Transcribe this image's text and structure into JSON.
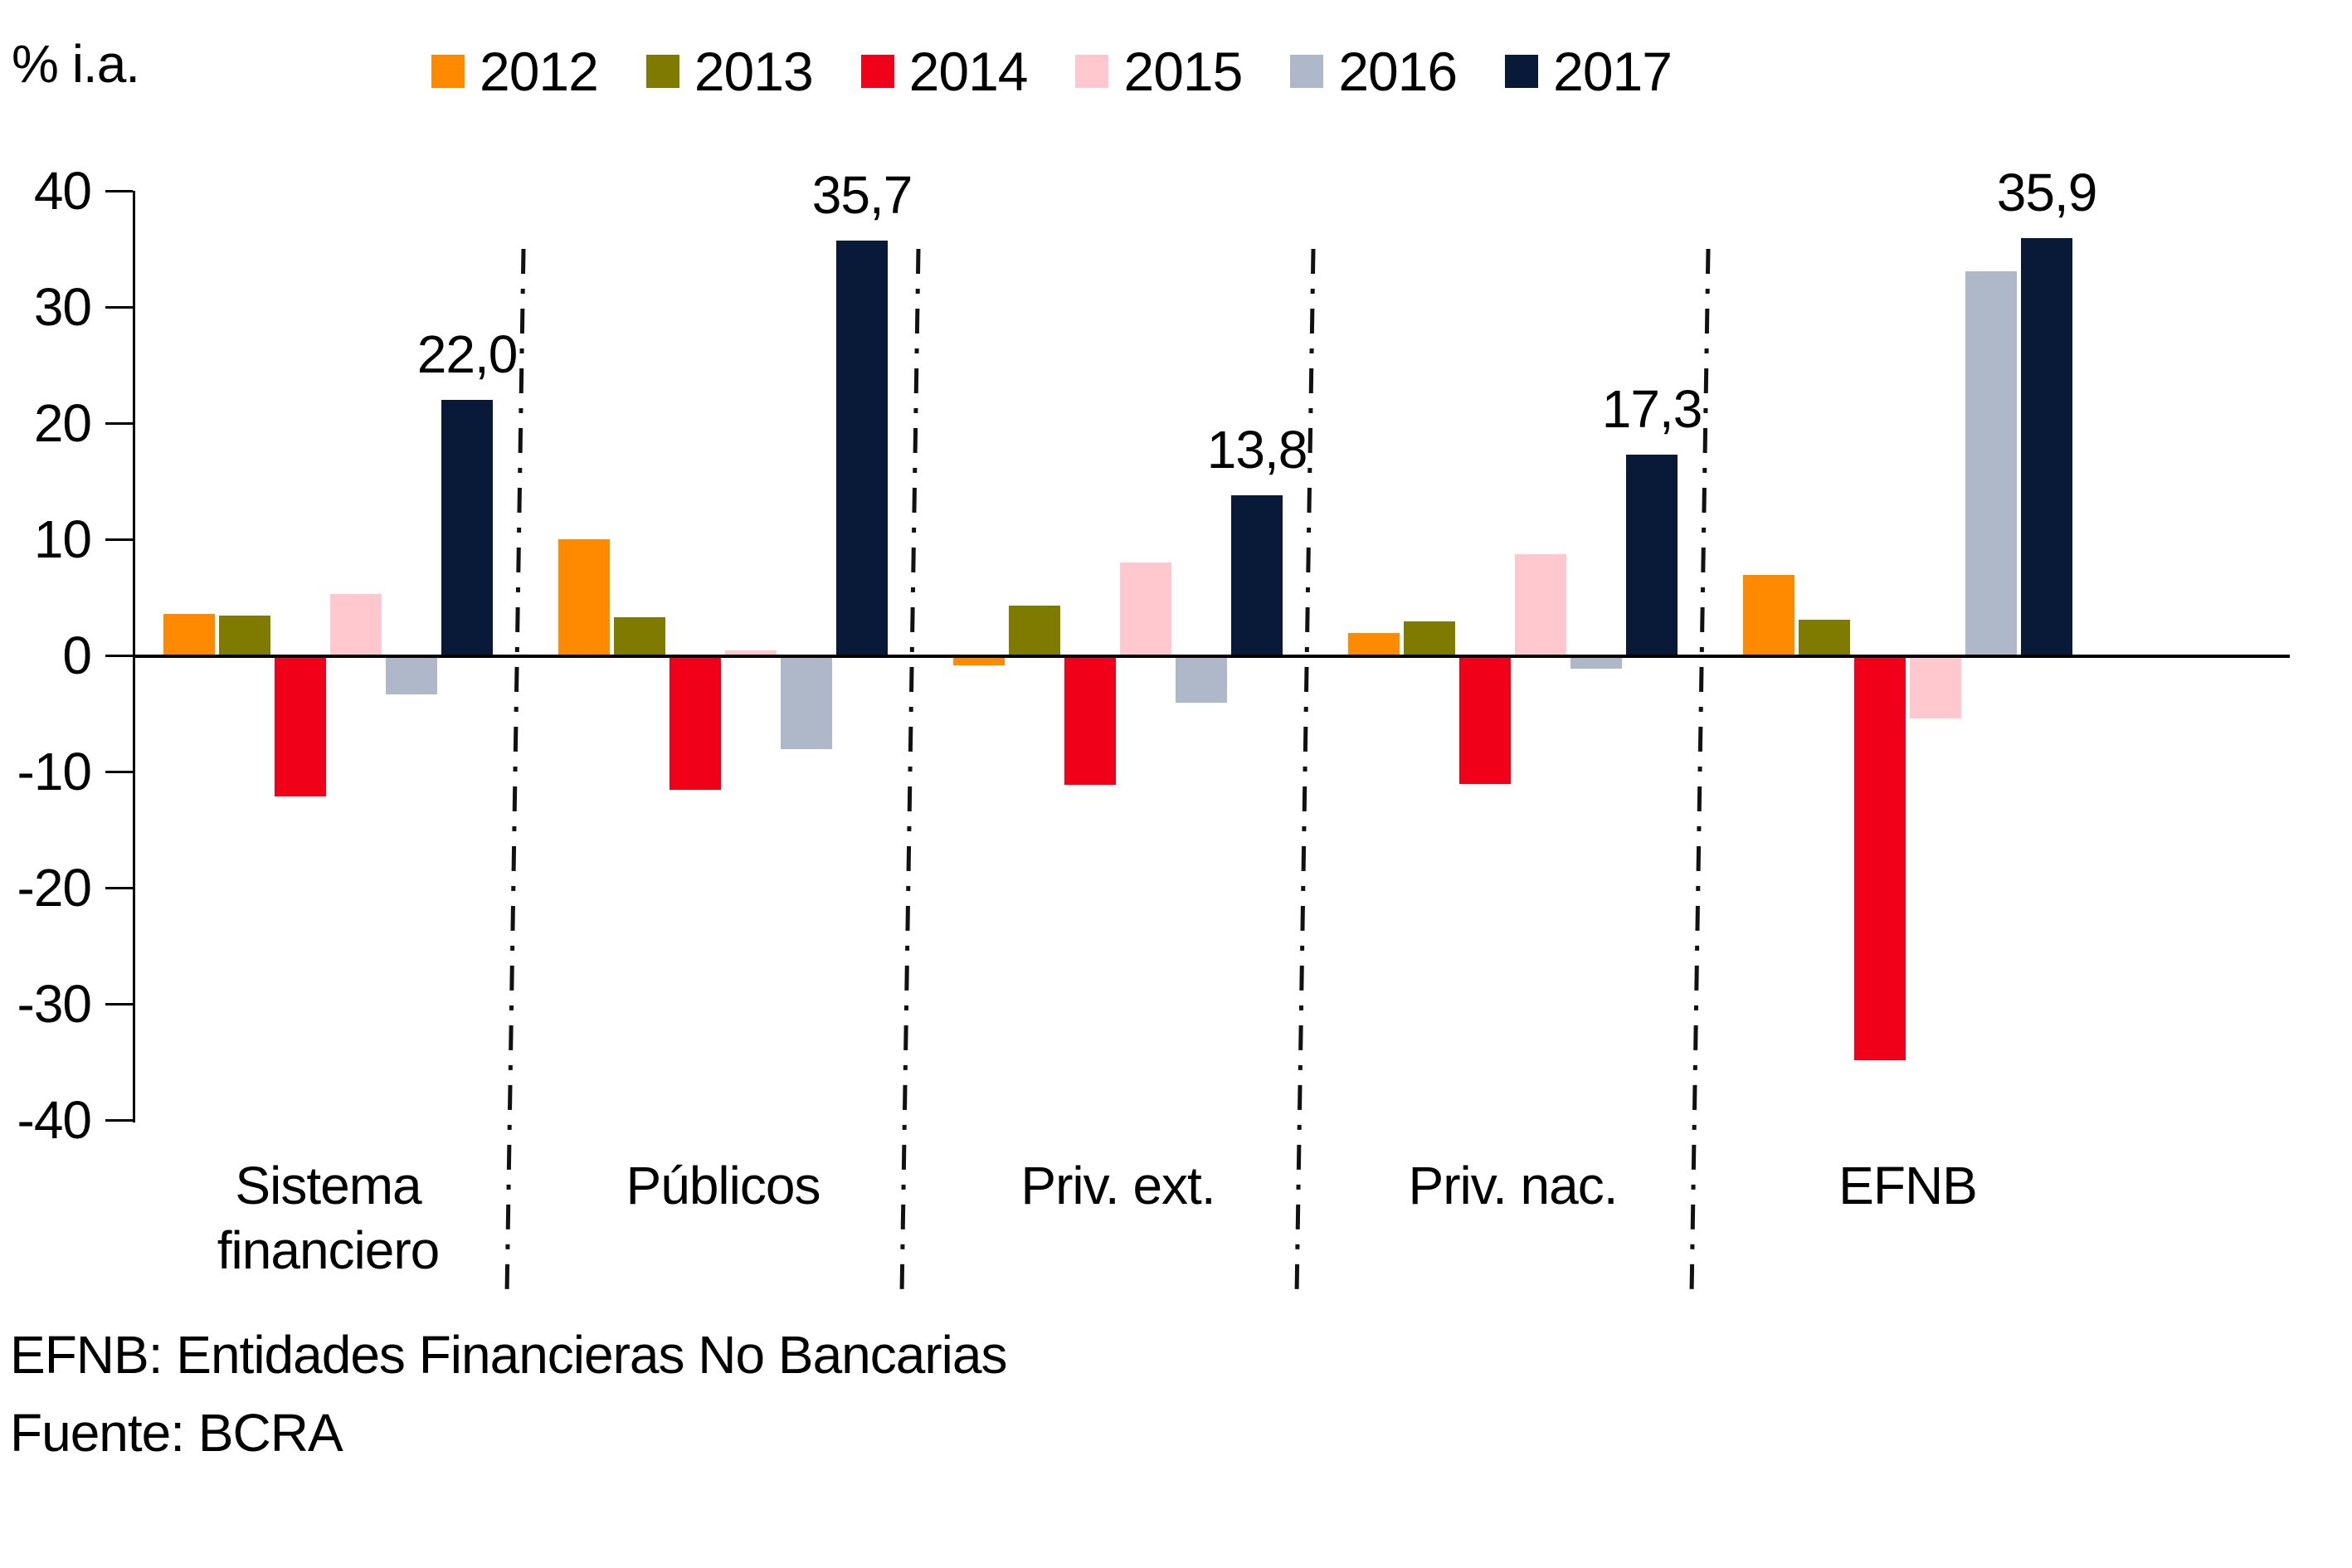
{
  "y_axis_label": "% i.a.",
  "footnotes": [
    "EFNB: Entidades Financieras No Bancarias",
    "Fuente: BCRA"
  ],
  "colors": {
    "axis": "#000000",
    "separator": "#111111",
    "s2012": "#FF8A00",
    "s2013": "#7E7B00",
    "s2014": "#F00019",
    "s2015": "#FFC8CE",
    "s2016": "#AEB8C8",
    "s2017": "#081A38"
  },
  "chart_data": {
    "type": "bar",
    "title": "",
    "xlabel": "",
    "ylabel": "% i.a.",
    "categories": [
      "Sistema financiero",
      "Públicos",
      "Priv. ext.",
      "Priv. nac.",
      "EFNB"
    ],
    "series": [
      {
        "name": "2012",
        "color": "#FF8A00",
        "values": [
          3.6,
          10.0,
          -0.7,
          1.9,
          6.9
        ]
      },
      {
        "name": "2013",
        "color": "#7E7B00",
        "values": [
          3.4,
          3.3,
          4.3,
          2.9,
          3.1
        ]
      },
      {
        "name": "2014",
        "color": "#F00019",
        "values": [
          -12.0,
          -11.4,
          -11.0,
          -10.9,
          -34.7
        ]
      },
      {
        "name": "2015",
        "color": "#FFC8CE",
        "values": [
          5.3,
          0.4,
          8.0,
          8.7,
          -5.3
        ]
      },
      {
        "name": "2016",
        "color": "#AEB8C8",
        "values": [
          -3.2,
          -7.9,
          -3.9,
          -1.0,
          33.1
        ]
      },
      {
        "name": "2017",
        "color": "#081A38",
        "values": [
          22.0,
          35.7,
          13.8,
          17.3,
          35.9
        ],
        "labels": [
          "22,0",
          "35,7",
          "13,8",
          "17,3",
          "35,9"
        ]
      }
    ],
    "ylim": [
      -40,
      40
    ],
    "yticks": [
      40,
      30,
      20,
      10,
      0,
      -10,
      -20,
      -30,
      -40
    ],
    "grid": false,
    "legend_position": "top",
    "group_separators": "dash-dot vertical lines between categories"
  }
}
